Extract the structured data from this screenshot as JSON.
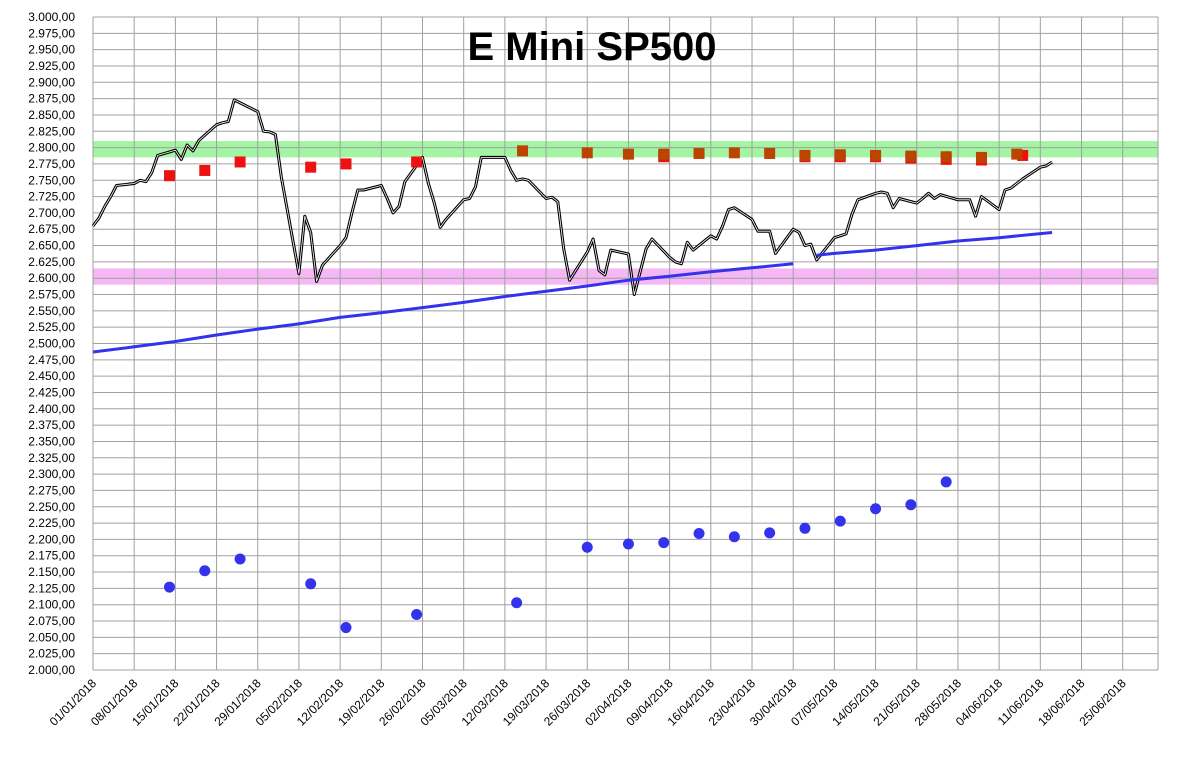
{
  "chart_data": {
    "type": "line",
    "title": "E Mini SP500",
    "xlabel": "",
    "ylabel": "",
    "ylim": [
      2000,
      3000
    ],
    "y_tick_step": 25,
    "x_tick_labels": [
      "01/01/2018",
      "08/01/2018",
      "15/01/2018",
      "22/01/2018",
      "29/01/2018",
      "05/02/2018",
      "12/02/2018",
      "19/02/2018",
      "26/02/2018",
      "05/03/2018",
      "12/03/2018",
      "19/03/2018",
      "26/03/2018",
      "02/04/2018",
      "09/04/2018",
      "16/04/2018",
      "23/04/2018",
      "30/04/2018",
      "07/05/2018",
      "14/05/2018",
      "21/05/2018",
      "28/05/2018",
      "04/06/2018",
      "11/06/2018",
      "18/06/2018",
      "25/06/2018"
    ],
    "xlim": [
      "2018-01-01",
      "2018-07-01"
    ],
    "grid": true,
    "bands": [
      {
        "from": 2785,
        "to": 2810,
        "color": "#66ee66"
      },
      {
        "from": 2590,
        "to": 2615,
        "color": "#ee88ee"
      }
    ],
    "series": [
      {
        "style": "line",
        "color": "#000000",
        "points": [
          [
            "2018-01-01",
            2680
          ],
          [
            "2018-01-02",
            2692
          ],
          [
            "2018-01-03",
            2710
          ],
          [
            "2018-01-04",
            2725
          ],
          [
            "2018-01-05",
            2742
          ],
          [
            "2018-01-08",
            2745
          ],
          [
            "2018-01-09",
            2750
          ],
          [
            "2018-01-10",
            2748
          ],
          [
            "2018-01-11",
            2762
          ],
          [
            "2018-01-12",
            2788
          ],
          [
            "2018-01-15",
            2796
          ],
          [
            "2018-01-16",
            2782
          ],
          [
            "2018-01-17",
            2804
          ],
          [
            "2018-01-18",
            2795
          ],
          [
            "2018-01-19",
            2811
          ],
          [
            "2018-01-22",
            2835
          ],
          [
            "2018-01-23",
            2838
          ],
          [
            "2018-01-24",
            2840
          ],
          [
            "2018-01-25",
            2873
          ],
          [
            "2018-01-29",
            2855
          ],
          [
            "2018-01-30",
            2825
          ],
          [
            "2018-01-31",
            2824
          ],
          [
            "2018-02-01",
            2820
          ],
          [
            "2018-02-02",
            2755
          ],
          [
            "2018-02-05",
            2607
          ],
          [
            "2018-02-06",
            2695
          ],
          [
            "2018-02-07",
            2670
          ],
          [
            "2018-02-08",
            2595
          ],
          [
            "2018-02-09",
            2620
          ],
          [
            "2018-02-12",
            2650
          ],
          [
            "2018-02-13",
            2662
          ],
          [
            "2018-02-14",
            2700
          ],
          [
            "2018-02-15",
            2735
          ],
          [
            "2018-02-16",
            2735
          ],
          [
            "2018-02-19",
            2742
          ],
          [
            "2018-02-20",
            2722
          ],
          [
            "2018-02-21",
            2700
          ],
          [
            "2018-02-22",
            2710
          ],
          [
            "2018-02-23",
            2748
          ],
          [
            "2018-02-26",
            2785
          ],
          [
            "2018-02-27",
            2745
          ],
          [
            "2018-02-28",
            2715
          ],
          [
            "2018-03-01",
            2678
          ],
          [
            "2018-03-02",
            2690
          ],
          [
            "2018-03-05",
            2720
          ],
          [
            "2018-03-06",
            2722
          ],
          [
            "2018-03-07",
            2740
          ],
          [
            "2018-03-08",
            2785
          ],
          [
            "2018-03-09",
            2785
          ],
          [
            "2018-03-12",
            2785
          ],
          [
            "2018-03-13",
            2765
          ],
          [
            "2018-03-14",
            2750
          ],
          [
            "2018-03-15",
            2752
          ],
          [
            "2018-03-16",
            2750
          ],
          [
            "2018-03-19",
            2722
          ],
          [
            "2018-03-20",
            2724
          ],
          [
            "2018-03-21",
            2717
          ],
          [
            "2018-03-22",
            2645
          ],
          [
            "2018-03-23",
            2597
          ],
          [
            "2018-03-26",
            2640
          ],
          [
            "2018-03-27",
            2660
          ],
          [
            "2018-03-28",
            2612
          ],
          [
            "2018-03-29",
            2605
          ],
          [
            "2018-03-30",
            2643
          ],
          [
            "2018-04-02",
            2637
          ],
          [
            "2018-04-03",
            2575
          ],
          [
            "2018-04-04",
            2610
          ],
          [
            "2018-04-05",
            2645
          ],
          [
            "2018-04-06",
            2660
          ],
          [
            "2018-04-09",
            2632
          ],
          [
            "2018-04-10",
            2625
          ],
          [
            "2018-04-11",
            2622
          ],
          [
            "2018-04-12",
            2655
          ],
          [
            "2018-04-13",
            2643
          ],
          [
            "2018-04-16",
            2665
          ],
          [
            "2018-04-17",
            2660
          ],
          [
            "2018-04-18",
            2680
          ],
          [
            "2018-04-19",
            2705
          ],
          [
            "2018-04-20",
            2708
          ],
          [
            "2018-04-23",
            2690
          ],
          [
            "2018-04-24",
            2672
          ],
          [
            "2018-04-25",
            2672
          ],
          [
            "2018-04-26",
            2672
          ],
          [
            "2018-04-27",
            2638
          ],
          [
            "2018-04-30",
            2675
          ],
          [
            "2018-05-01",
            2670
          ],
          [
            "2018-05-02",
            2650
          ],
          [
            "2018-05-03",
            2652
          ],
          [
            "2018-05-04",
            2628
          ],
          [
            "2018-05-07",
            2662
          ],
          [
            "2018-05-08",
            2665
          ],
          [
            "2018-05-09",
            2668
          ],
          [
            "2018-05-10",
            2698
          ],
          [
            "2018-05-11",
            2720
          ],
          [
            "2018-05-14",
            2730
          ],
          [
            "2018-05-15",
            2732
          ],
          [
            "2018-05-16",
            2730
          ],
          [
            "2018-05-17",
            2708
          ],
          [
            "2018-05-18",
            2722
          ],
          [
            "2018-05-21",
            2715
          ],
          [
            "2018-05-22",
            2722
          ],
          [
            "2018-05-23",
            2730
          ],
          [
            "2018-05-24",
            2722
          ],
          [
            "2018-05-25",
            2728
          ],
          [
            "2018-05-28",
            2720
          ],
          [
            "2018-05-29",
            2720
          ],
          [
            "2018-05-30",
            2720
          ],
          [
            "2018-05-31",
            2695
          ],
          [
            "2018-06-01",
            2725
          ],
          [
            "2018-06-04",
            2705
          ],
          [
            "2018-06-05",
            2735
          ],
          [
            "2018-06-06",
            2738
          ],
          [
            "2018-06-07",
            2745
          ],
          [
            "2018-06-08",
            2752
          ],
          [
            "2018-06-11",
            2770
          ],
          [
            "2018-06-12",
            2772
          ],
          [
            "2018-06-13",
            2778
          ]
        ]
      },
      {
        "style": "line",
        "color": "#3333ee",
        "points": [
          [
            "2018-01-01",
            2487
          ],
          [
            "2018-01-08",
            2495
          ],
          [
            "2018-01-15",
            2503
          ],
          [
            "2018-01-22",
            2513
          ],
          [
            "2018-01-29",
            2522
          ],
          [
            "2018-02-05",
            2530
          ],
          [
            "2018-02-12",
            2540
          ],
          [
            "2018-02-19",
            2547
          ],
          [
            "2018-02-26",
            2555
          ],
          [
            "2018-03-05",
            2563
          ],
          [
            "2018-03-12",
            2572
          ],
          [
            "2018-03-19",
            2580
          ],
          [
            "2018-03-26",
            2588
          ],
          [
            "2018-04-02",
            2597
          ],
          [
            "2018-04-09",
            2603
          ],
          [
            "2018-04-16",
            2610
          ],
          [
            "2018-04-23",
            2616
          ],
          [
            "2018-04-30",
            2622
          ]
        ]
      },
      {
        "style": "line",
        "color": "#3333ee",
        "points": [
          [
            "2018-05-04",
            2635
          ],
          [
            "2018-05-07",
            2638
          ],
          [
            "2018-05-14",
            2643
          ],
          [
            "2018-05-21",
            2650
          ],
          [
            "2018-05-28",
            2657
          ],
          [
            "2018-06-04",
            2662
          ],
          [
            "2018-06-13",
            2670
          ]
        ]
      },
      {
        "style": "square",
        "color": "#ee1111",
        "points": [
          [
            "2018-01-14",
            2757
          ],
          [
            "2018-01-20",
            2765
          ],
          [
            "2018-01-26",
            2778
          ],
          [
            "2018-02-07",
            2770
          ],
          [
            "2018-02-13",
            2775
          ],
          [
            "2018-02-25",
            2778
          ],
          [
            "2018-04-08",
            2786
          ],
          [
            "2018-05-02",
            2786
          ],
          [
            "2018-05-08",
            2786
          ],
          [
            "2018-05-14",
            2786
          ],
          [
            "2018-05-20",
            2784
          ],
          [
            "2018-05-26",
            2782
          ],
          [
            "2018-06-01",
            2781
          ],
          [
            "2018-06-08",
            2788
          ]
        ]
      },
      {
        "style": "square",
        "color": "#bb4400",
        "points": [
          [
            "2018-03-15",
            2795
          ],
          [
            "2018-03-26",
            2792
          ],
          [
            "2018-04-02",
            2790
          ],
          [
            "2018-04-08",
            2790
          ],
          [
            "2018-04-14",
            2791
          ],
          [
            "2018-04-20",
            2792
          ],
          [
            "2018-04-26",
            2791
          ],
          [
            "2018-05-02",
            2788
          ],
          [
            "2018-05-08",
            2789
          ],
          [
            "2018-05-14",
            2788
          ],
          [
            "2018-05-20",
            2787
          ],
          [
            "2018-05-26",
            2786
          ],
          [
            "2018-06-01",
            2785
          ],
          [
            "2018-06-07",
            2790
          ]
        ]
      },
      {
        "style": "circle",
        "color": "#3333ee",
        "points": [
          [
            "2018-01-14",
            2127
          ],
          [
            "2018-01-20",
            2152
          ],
          [
            "2018-01-26",
            2170
          ],
          [
            "2018-02-07",
            2132
          ],
          [
            "2018-02-13",
            2065
          ],
          [
            "2018-02-25",
            2085
          ],
          [
            "2018-03-14",
            2103
          ],
          [
            "2018-03-26",
            2188
          ],
          [
            "2018-04-02",
            2193
          ],
          [
            "2018-04-08",
            2195
          ],
          [
            "2018-04-14",
            2209
          ],
          [
            "2018-04-20",
            2204
          ],
          [
            "2018-04-26",
            2210
          ],
          [
            "2018-05-02",
            2217
          ],
          [
            "2018-05-08",
            2228
          ],
          [
            "2018-05-14",
            2247
          ],
          [
            "2018-05-20",
            2253
          ],
          [
            "2018-05-26",
            2288
          ]
        ]
      }
    ]
  }
}
